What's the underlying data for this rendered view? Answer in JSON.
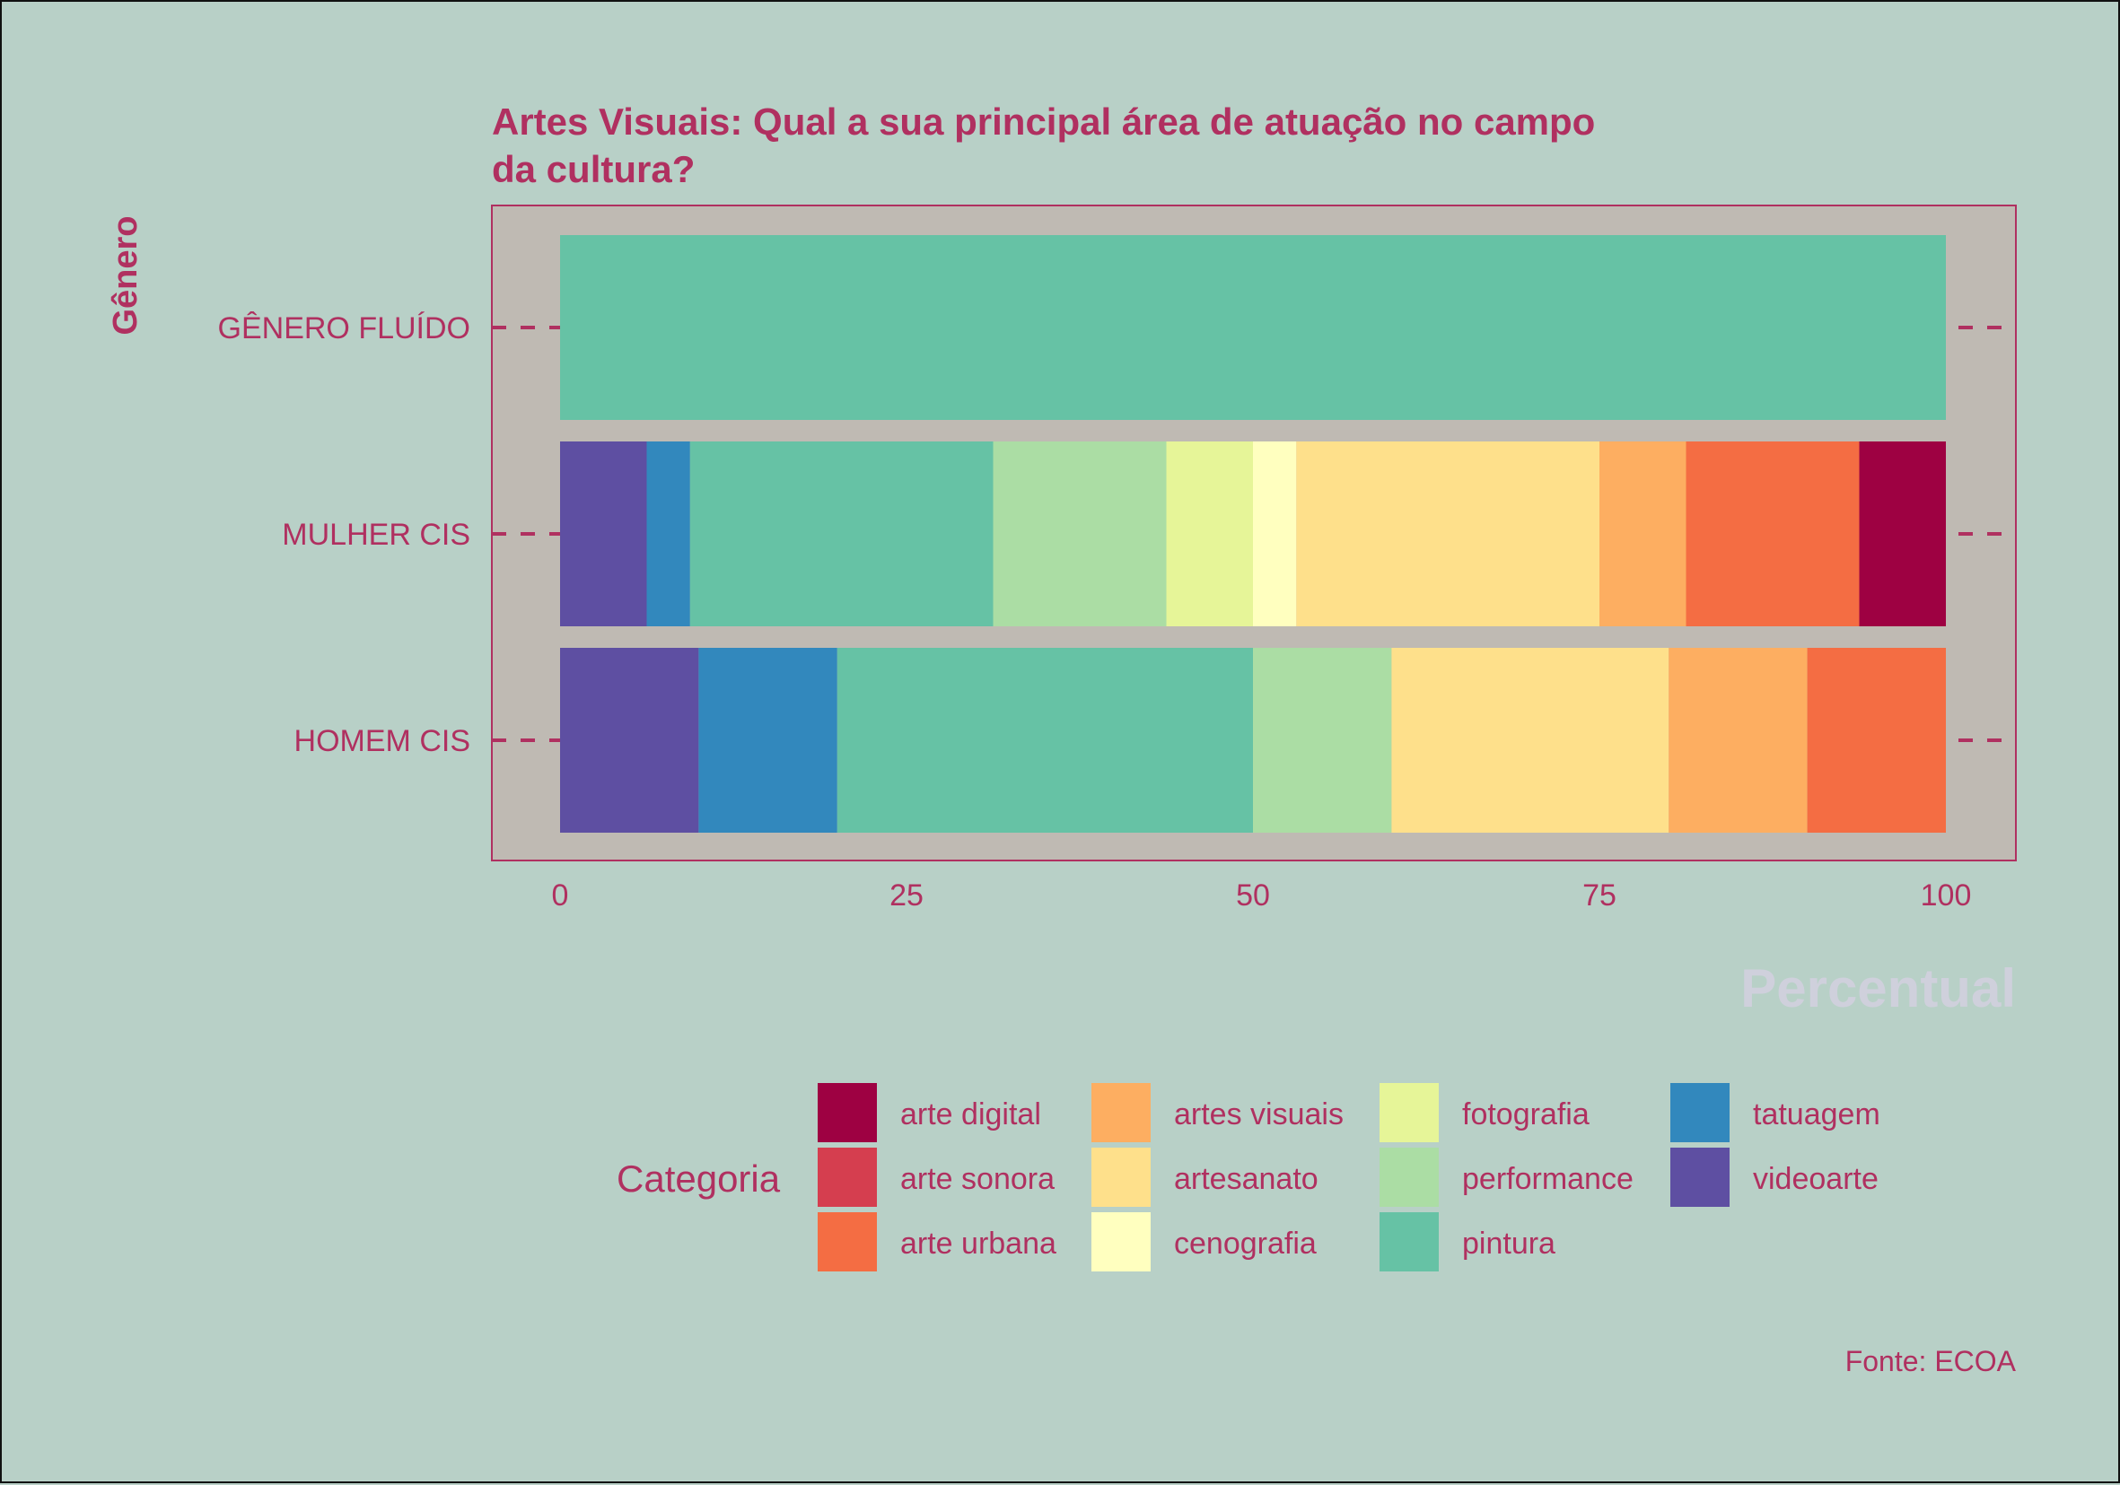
{
  "chart_data": {
    "type": "bar",
    "orientation": "horizontal",
    "stacked": true,
    "title": "Artes Visuais: Qual a sua principal área de atuação no campo da cultura?",
    "title_lines": [
      "Artes Visuais: Qual a sua principal área de atuação no campo",
      "da cultura?"
    ],
    "xlabel": "Percentual",
    "ylabel": "Gênero",
    "caption": "Fonte: ECOA",
    "xlim": [
      0,
      100
    ],
    "x_ticks": [
      "0",
      "25",
      "50",
      "75",
      "100"
    ],
    "categories": [
      "GÊNERO FLUÍDO",
      "MULHER CIS",
      "HOMEM CIS"
    ],
    "grid": false,
    "legend": {
      "title": "Categoria",
      "position": "bottom"
    },
    "series": [
      {
        "name": "videoarte",
        "color": "#5e4fa2",
        "values": [
          0,
          6.25,
          10
        ]
      },
      {
        "name": "tatuagem",
        "color": "#3288bd",
        "values": [
          0,
          3.13,
          10
        ]
      },
      {
        "name": "pintura",
        "color": "#66c2a5",
        "values": [
          100,
          21.87,
          30
        ]
      },
      {
        "name": "performance",
        "color": "#abdda4",
        "values": [
          0,
          12.5,
          10
        ]
      },
      {
        "name": "fotografia",
        "color": "#e6f598",
        "values": [
          0,
          6.25,
          0
        ]
      },
      {
        "name": "cenografia",
        "color": "#ffffbf",
        "values": [
          0,
          3.13,
          0
        ]
      },
      {
        "name": "artesanato",
        "color": "#fee08b",
        "values": [
          0,
          21.87,
          20
        ]
      },
      {
        "name": "artes visuais",
        "color": "#fdae61",
        "values": [
          0,
          6.25,
          10
        ]
      },
      {
        "name": "arte urbana",
        "color": "#f46d43",
        "values": [
          0,
          12.5,
          10
        ]
      },
      {
        "name": "arte sonora",
        "color": "#d53e4f",
        "values": [
          0,
          0,
          0
        ]
      },
      {
        "name": "arte digital",
        "color": "#9e0142",
        "values": [
          0,
          6.25,
          0
        ]
      }
    ],
    "legend_order": [
      "arte digital",
      "arte sonora",
      "arte urbana",
      "artes visuais",
      "artesanato",
      "cenografia",
      "fotografia",
      "performance",
      "pintura",
      "tatuagem",
      "videoarte"
    ]
  },
  "colors": {
    "background": "#b8d0c7",
    "panel": "#bfbab3",
    "accent_text": "#b03060",
    "xlabel_text": "#cfd0dc"
  }
}
